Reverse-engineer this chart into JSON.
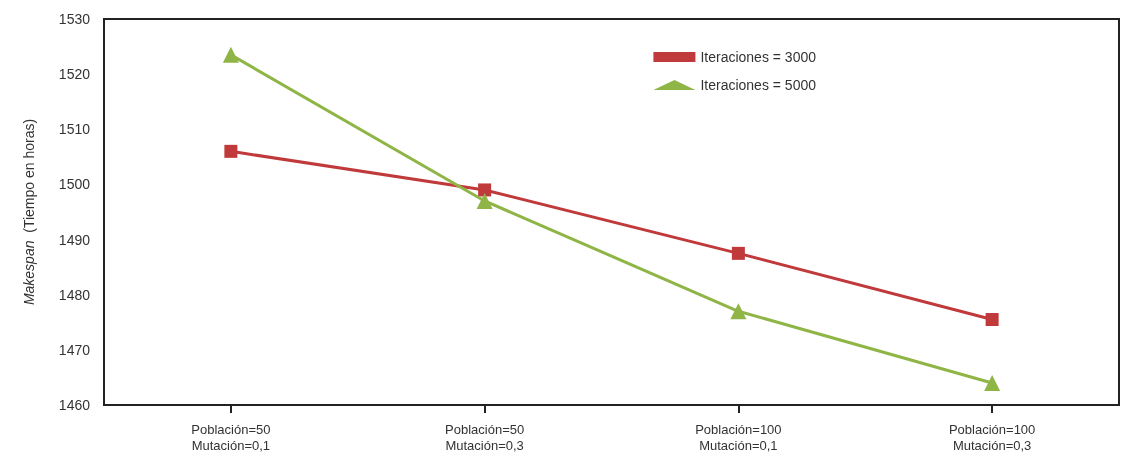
{
  "chart_data": {
    "type": "line",
    "ylabel": "Makespan  (Tiempo en horas)",
    "categories": [
      "Población=50\nMutación=0,1",
      "Población=50\nMutación=0,3",
      "Población=100\nMutación=0,1",
      "Población=100\nMutación=0,3"
    ],
    "series": [
      {
        "name": "Iteraciones = 3000",
        "color": "#c0393b",
        "marker": "square",
        "values": [
          1506,
          1499,
          1487.5,
          1475.5
        ]
      },
      {
        "name": "Iteraciones = 5000",
        "color": "#8fb546",
        "marker": "triangle",
        "values": [
          1523.5,
          1497,
          1477,
          1464
        ]
      }
    ],
    "ylim": [
      1460,
      1530
    ],
    "yticks": [
      1460,
      1470,
      1480,
      1490,
      1500,
      1510,
      1520,
      1530
    ],
    "grid": false,
    "legend": "top right",
    "line_style": "solid"
  }
}
